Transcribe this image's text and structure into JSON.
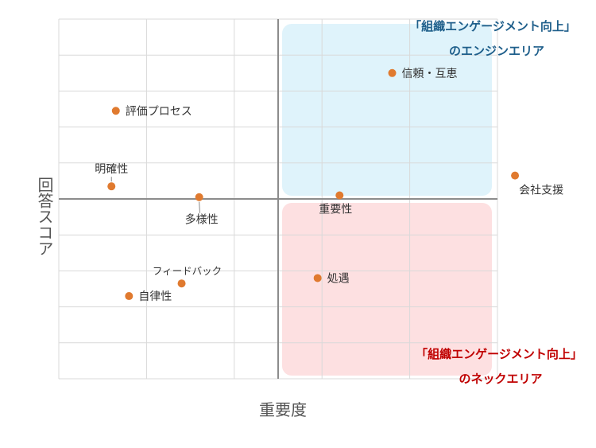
{
  "chart_data": {
    "type": "scatter",
    "xlabel": "重要度",
    "ylabel": "回答スコア",
    "xlim": [
      -5,
      5
    ],
    "ylim": [
      -5,
      5
    ],
    "grid": true,
    "zones": [
      {
        "name": "engine",
        "lines": [
          "「組織エンゲージメント向上」",
          "のエンジンエリア"
        ],
        "color": "#1f5f8b",
        "fill": "#dff3fb"
      },
      {
        "name": "bottleneck",
        "lines": [
          "「組織エンゲージメント向上」",
          "のネックエリア"
        ],
        "color": "#c00000",
        "fill": "#fde0e1"
      }
    ],
    "marker_color": "#e07a2f",
    "points": [
      {
        "label": "信頼・互恵",
        "x": 2.6,
        "y": 3.5
      },
      {
        "label": "評価プロセス",
        "x": -3.7,
        "y": 2.45
      },
      {
        "label": "明確性",
        "x": -3.8,
        "y": 0.35
      },
      {
        "label": "会社支援",
        "x": 5.4,
        "y": 0.65
      },
      {
        "label": "重要性",
        "x": 1.4,
        "y": 0.1
      },
      {
        "label": "多様性",
        "x": -1.8,
        "y": 0.05
      },
      {
        "label": "処遇",
        "x": 0.9,
        "y": -2.2
      },
      {
        "label": "フィードバック",
        "x": -2.2,
        "y": -2.35
      },
      {
        "label": "自律性",
        "x": -3.4,
        "y": -2.7
      }
    ]
  }
}
